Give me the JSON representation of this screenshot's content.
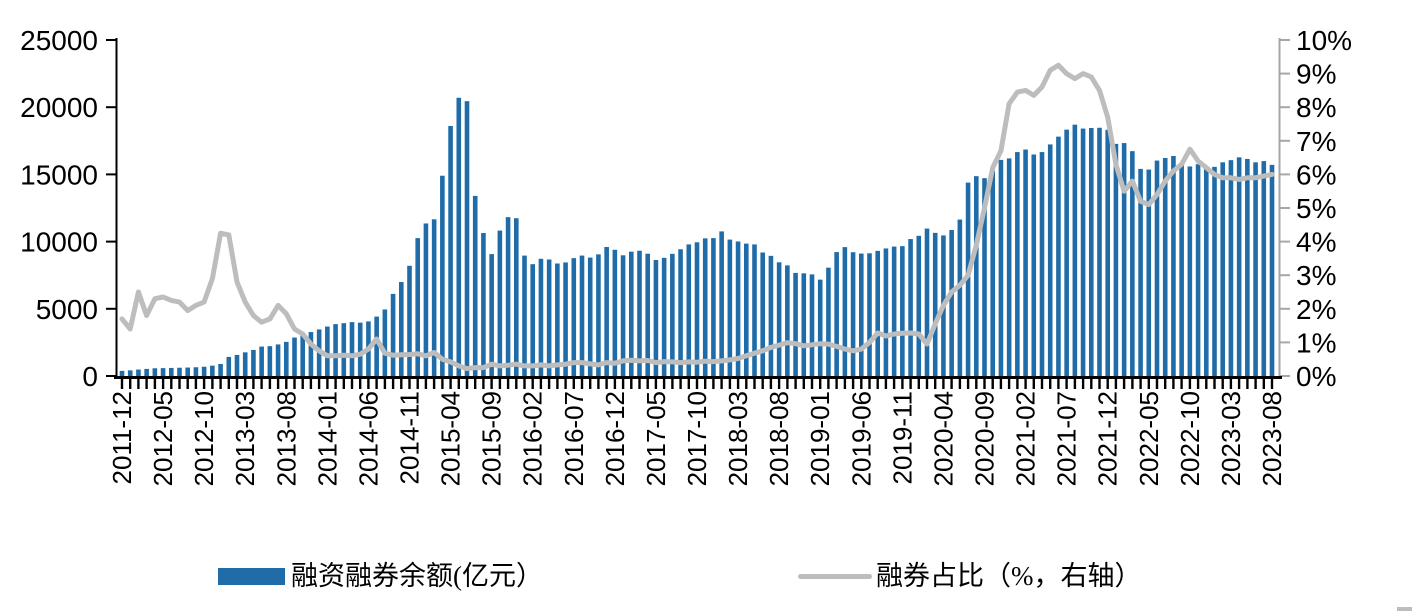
{
  "legend": {
    "items": [
      {
        "label": "融资融券余额(亿元）",
        "swatch": "bar",
        "color": "#1F6CA8"
      },
      {
        "label": "融券占比（%，右轴）",
        "swatch": "line",
        "color": "#BDBDBD"
      }
    ]
  },
  "chart_data": {
    "type": "combo-bar-line",
    "title": "",
    "grid": false,
    "legend_position": "bottom",
    "x_tick_every": 5,
    "categories": [
      "2011-12",
      "2012-01",
      "2012-02",
      "2012-03",
      "2012-04",
      "2012-05",
      "2012-06",
      "2012-07",
      "2012-08",
      "2012-09",
      "2012-10",
      "2012-11",
      "2012-12",
      "2013-01",
      "2013-02",
      "2013-03",
      "2013-04",
      "2013-05",
      "2013-06",
      "2013-07",
      "2013-08",
      "2013-09",
      "2013-10",
      "2013-11",
      "2013-12",
      "2014-01",
      "2014-02",
      "2014-03",
      "2014-04",
      "2014-05",
      "2014-06",
      "2014-07",
      "2014-08",
      "2014-09",
      "2014-10",
      "2014-11",
      "2014-12",
      "2015-01",
      "2015-02",
      "2015-03",
      "2015-04",
      "2015-05",
      "2015-06",
      "2015-07",
      "2015-08",
      "2015-09",
      "2015-10",
      "2015-11",
      "2015-12",
      "2016-01",
      "2016-02",
      "2016-03",
      "2016-04",
      "2016-05",
      "2016-06",
      "2016-07",
      "2016-08",
      "2016-09",
      "2016-10",
      "2016-11",
      "2016-12",
      "2017-01",
      "2017-02",
      "2017-03",
      "2017-04",
      "2017-05",
      "2017-06",
      "2017-07",
      "2017-08",
      "2017-09",
      "2017-10",
      "2017-11",
      "2017-12",
      "2018-01",
      "2018-02",
      "2018-03",
      "2018-04",
      "2018-05",
      "2018-06",
      "2018-07",
      "2018-08",
      "2018-09",
      "2018-10",
      "2018-11",
      "2018-12",
      "2019-01",
      "2019-02",
      "2019-03",
      "2019-04",
      "2019-05",
      "2019-06",
      "2019-07",
      "2019-08",
      "2019-09",
      "2019-10",
      "2019-11",
      "2019-12",
      "2020-01",
      "2020-02",
      "2020-03",
      "2020-04",
      "2020-05",
      "2020-06",
      "2020-07",
      "2020-08",
      "2020-09",
      "2020-10",
      "2020-11",
      "2020-12",
      "2021-01",
      "2021-02",
      "2021-03",
      "2021-04",
      "2021-05",
      "2021-06",
      "2021-07",
      "2021-08",
      "2021-09",
      "2021-10",
      "2021-11",
      "2021-12",
      "2022-01",
      "2022-02",
      "2022-03",
      "2022-04",
      "2022-05",
      "2022-06",
      "2022-07",
      "2022-08",
      "2022-09",
      "2022-10",
      "2022-11",
      "2022-12",
      "2023-01",
      "2023-02",
      "2023-03",
      "2023-04",
      "2023-05",
      "2023-06",
      "2023-07",
      "2023-08"
    ],
    "series": [
      {
        "name": "融资融券余额(亿元）",
        "type": "bar",
        "axis": "left",
        "color": "#1F6CA8",
        "values": [
          382,
          420,
          480,
          525,
          575,
          585,
          600,
          615,
          630,
          650,
          690,
          770,
          895,
          1420,
          1565,
          1760,
          1940,
          2190,
          2220,
          2350,
          2540,
          2860,
          3010,
          3270,
          3465,
          3680,
          3860,
          3930,
          4010,
          3970,
          4060,
          4420,
          4950,
          6110,
          6990,
          8200,
          10260,
          11350,
          11660,
          14900,
          18600,
          20700,
          20450,
          13400,
          10640,
          9070,
          10820,
          11820,
          11740,
          8960,
          8320,
          8720,
          8670,
          8370,
          8450,
          8770,
          8960,
          8810,
          9050,
          9600,
          9390,
          8980,
          9250,
          9320,
          9100,
          8630,
          8790,
          9090,
          9430,
          9790,
          9950,
          10240,
          10260,
          10760,
          10150,
          10010,
          9850,
          9790,
          9190,
          8940,
          8460,
          8230,
          7670,
          7640,
          7560,
          7170,
          8060,
          9220,
          9590,
          9210,
          9110,
          9130,
          9310,
          9490,
          9630,
          9660,
          10190,
          10430,
          10970,
          10650,
          10460,
          10860,
          11640,
          14390,
          14870,
          14720,
          15260,
          16080,
          16190,
          16660,
          16850,
          16480,
          16660,
          17230,
          17810,
          18330,
          18700,
          18410,
          18450,
          18470,
          18320,
          17270,
          17330,
          16730,
          15410,
          15360,
          16030,
          16220,
          16370,
          15810,
          15590,
          15760,
          15410,
          15560,
          15900,
          16060,
          16270,
          16150,
          15900,
          15990,
          15710
        ]
      },
      {
        "name": "融券占比（%，右轴）",
        "type": "line",
        "axis": "right",
        "color": "#BDBDBD",
        "values": [
          1.7,
          1.4,
          2.5,
          1.8,
          2.3,
          2.35,
          2.25,
          2.2,
          1.95,
          2.1,
          2.2,
          2.9,
          4.25,
          4.2,
          2.8,
          2.2,
          1.8,
          1.6,
          1.7,
          2.1,
          1.85,
          1.4,
          1.25,
          0.95,
          0.75,
          0.6,
          0.6,
          0.62,
          0.6,
          0.65,
          0.8,
          1.1,
          0.68,
          0.62,
          0.63,
          0.64,
          0.66,
          0.6,
          0.7,
          0.5,
          0.42,
          0.3,
          0.22,
          0.25,
          0.25,
          0.35,
          0.3,
          0.32,
          0.35,
          0.3,
          0.3,
          0.33,
          0.3,
          0.33,
          0.35,
          0.4,
          0.4,
          0.36,
          0.33,
          0.4,
          0.38,
          0.45,
          0.47,
          0.45,
          0.46,
          0.4,
          0.43,
          0.42,
          0.4,
          0.42,
          0.41,
          0.44,
          0.43,
          0.45,
          0.48,
          0.52,
          0.6,
          0.68,
          0.75,
          0.85,
          0.92,
          0.99,
          0.96,
          0.9,
          0.93,
          0.96,
          0.95,
          0.88,
          0.8,
          0.75,
          0.8,
          1.0,
          1.28,
          1.19,
          1.25,
          1.27,
          1.28,
          1.25,
          0.95,
          1.55,
          2.1,
          2.5,
          2.7,
          3.0,
          3.9,
          5.0,
          6.2,
          6.7,
          8.1,
          8.45,
          8.5,
          8.35,
          8.6,
          9.1,
          9.25,
          9.0,
          8.85,
          9.0,
          8.9,
          8.5,
          7.7,
          6.3,
          5.5,
          5.8,
          5.2,
          5.1,
          5.4,
          5.8,
          6.1,
          6.3,
          6.75,
          6.4,
          6.2,
          6.0,
          5.9,
          5.9,
          5.85,
          5.9,
          5.9,
          5.95,
          6.0
        ]
      }
    ],
    "left_axis": {
      "min": 0,
      "max": 25000,
      "step": 5000,
      "tick_labels": [
        "0",
        "5000",
        "10000",
        "15000",
        "20000",
        "25000"
      ]
    },
    "right_axis": {
      "min": 0,
      "max": 10,
      "step": 1,
      "suffix": "%",
      "tick_labels": [
        "0%",
        "1%",
        "2%",
        "3%",
        "4%",
        "5%",
        "6%",
        "7%",
        "8%",
        "9%",
        "10%"
      ]
    },
    "axis_color": "#000000",
    "right_axis_color": "#A6A6A6"
  }
}
